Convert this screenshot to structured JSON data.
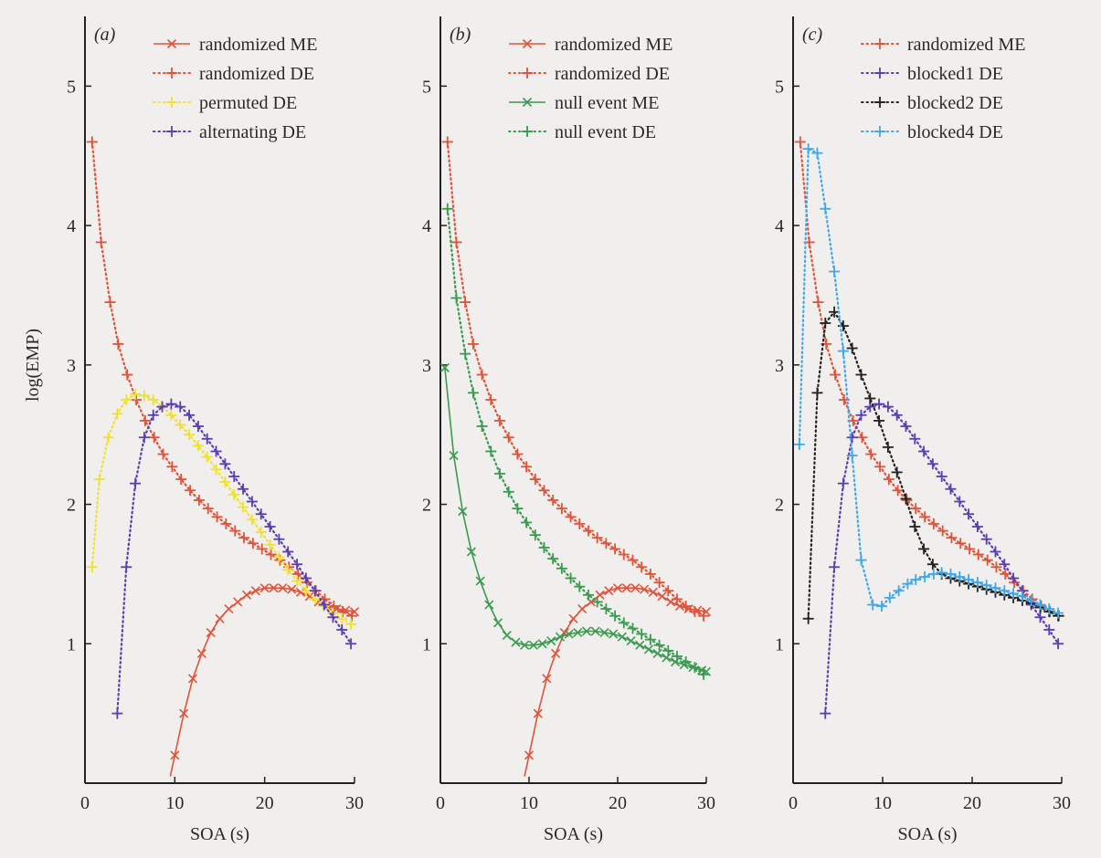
{
  "figure": {
    "ylabel": "log(EMP)"
  },
  "colors": {
    "red": "#e0533a",
    "yellow": "#f0e030",
    "purple": "#5a3fb0",
    "green": "#3a9a50",
    "black": "#222222",
    "lightblue": "#40a8e8",
    "axis": "#222222"
  },
  "chart_data": [
    {
      "type": "line",
      "panel_label": "(a)",
      "xlabel": "SOA (s)",
      "ylabel": "log(EMP)",
      "xlim": [
        0,
        30
      ],
      "ylim": [
        0,
        5.5
      ],
      "xticks": [
        0,
        10,
        20,
        30
      ],
      "yticks": [
        1,
        2,
        3,
        4,
        5
      ],
      "legend_position": "top-right",
      "series": [
        {
          "name": "randomized ME",
          "color_key": "red",
          "marker": "x",
          "line": "solid",
          "x": [
            9.5,
            10,
            11,
            12,
            13,
            14,
            15,
            16,
            17,
            18,
            19,
            20,
            21,
            22,
            23,
            24,
            25,
            26,
            27,
            28,
            29,
            30
          ],
          "y": [
            0.05,
            0.2,
            0.5,
            0.75,
            0.93,
            1.08,
            1.18,
            1.25,
            1.3,
            1.35,
            1.38,
            1.4,
            1.4,
            1.4,
            1.39,
            1.37,
            1.34,
            1.3,
            1.27,
            1.25,
            1.24,
            1.23
          ]
        },
        {
          "name": "randomized DE",
          "color_key": "red",
          "marker": "+",
          "line": "dotted",
          "x": [
            0.8,
            1.8,
            2.8,
            3.7,
            4.7,
            5.7,
            6.7,
            7.7,
            8.7,
            9.7,
            10.7,
            11.7,
            12.7,
            13.7,
            14.7,
            15.7,
            16.7,
            17.7,
            18.7,
            19.7,
            20.7,
            21.7,
            22.7,
            23.7,
            24.7,
            25.7,
            26.7,
            27.7,
            28.7,
            29.7
          ],
          "y": [
            4.6,
            3.88,
            3.45,
            3.15,
            2.93,
            2.75,
            2.6,
            2.48,
            2.36,
            2.27,
            2.18,
            2.1,
            2.03,
            1.97,
            1.91,
            1.86,
            1.81,
            1.76,
            1.72,
            1.68,
            1.64,
            1.6,
            1.55,
            1.5,
            1.44,
            1.38,
            1.32,
            1.27,
            1.23,
            1.2
          ]
        },
        {
          "name": "permuted DE",
          "color_key": "yellow",
          "marker": "+",
          "line": "dotted",
          "x": [
            0.8,
            1.6,
            2.6,
            3.6,
            4.6,
            5.6,
            6.6,
            7.6,
            8.6,
            9.6,
            10.6,
            11.6,
            12.6,
            13.6,
            14.6,
            15.6,
            16.6,
            17.6,
            18.6,
            19.6,
            20.6,
            21.6,
            22.6,
            23.6,
            24.6,
            25.6,
            26.6,
            27.6,
            28.6,
            29.6
          ],
          "y": [
            1.55,
            2.18,
            2.48,
            2.65,
            2.75,
            2.79,
            2.78,
            2.75,
            2.7,
            2.64,
            2.57,
            2.5,
            2.42,
            2.34,
            2.25,
            2.16,
            2.07,
            1.98,
            1.89,
            1.8,
            1.71,
            1.62,
            1.53,
            1.45,
            1.38,
            1.32,
            1.27,
            1.22,
            1.18,
            1.14
          ]
        },
        {
          "name": "alternating DE",
          "color_key": "purple",
          "marker": "+",
          "line": "dotted",
          "x": [
            3.6,
            4.6,
            5.6,
            6.6,
            7.6,
            8.6,
            9.6,
            10.6,
            11.6,
            12.6,
            13.6,
            14.6,
            15.6,
            16.6,
            17.6,
            18.6,
            19.6,
            20.6,
            21.6,
            22.6,
            23.6,
            24.6,
            25.6,
            26.6,
            27.6,
            28.6,
            29.6
          ],
          "y": [
            0.5,
            1.55,
            2.15,
            2.48,
            2.64,
            2.7,
            2.72,
            2.7,
            2.64,
            2.56,
            2.47,
            2.38,
            2.29,
            2.2,
            2.11,
            2.02,
            1.93,
            1.84,
            1.75,
            1.66,
            1.57,
            1.47,
            1.38,
            1.28,
            1.19,
            1.1,
            1.0
          ]
        }
      ]
    },
    {
      "type": "line",
      "panel_label": "(b)",
      "xlabel": "SOA (s)",
      "ylabel": "",
      "xlim": [
        0,
        30
      ],
      "ylim": [
        0,
        5.5
      ],
      "xticks": [
        0,
        10,
        20,
        30
      ],
      "yticks": [
        1,
        2,
        3,
        4,
        5
      ],
      "legend_position": "top-right",
      "series": [
        {
          "name": "randomized ME",
          "color_key": "red",
          "marker": "x",
          "line": "solid",
          "x": [
            9.5,
            10,
            11,
            12,
            13,
            14,
            15,
            16,
            17,
            18,
            19,
            20,
            21,
            22,
            23,
            24,
            25,
            26,
            27,
            28,
            29,
            30
          ],
          "y": [
            0.05,
            0.2,
            0.5,
            0.75,
            0.93,
            1.08,
            1.18,
            1.25,
            1.3,
            1.35,
            1.38,
            1.4,
            1.4,
            1.4,
            1.39,
            1.37,
            1.34,
            1.3,
            1.27,
            1.25,
            1.24,
            1.23
          ]
        },
        {
          "name": "randomized DE",
          "color_key": "red",
          "marker": "+",
          "line": "dotted",
          "x": [
            0.8,
            1.8,
            2.8,
            3.7,
            4.7,
            5.7,
            6.7,
            7.7,
            8.7,
            9.7,
            10.7,
            11.7,
            12.7,
            13.7,
            14.7,
            15.7,
            16.7,
            17.7,
            18.7,
            19.7,
            20.7,
            21.7,
            22.7,
            23.7,
            24.7,
            25.7,
            26.7,
            27.7,
            28.7,
            29.7
          ],
          "y": [
            4.6,
            3.88,
            3.45,
            3.15,
            2.93,
            2.75,
            2.6,
            2.48,
            2.36,
            2.27,
            2.18,
            2.1,
            2.03,
            1.97,
            1.91,
            1.86,
            1.81,
            1.76,
            1.72,
            1.68,
            1.64,
            1.6,
            1.55,
            1.5,
            1.44,
            1.38,
            1.32,
            1.27,
            1.23,
            1.2
          ]
        },
        {
          "name": "null event ME",
          "color_key": "green",
          "marker": "x",
          "line": "solid",
          "x": [
            0.5,
            1.5,
            2.5,
            3.5,
            4.5,
            5.5,
            6.5,
            7.5,
            8.5,
            9.5,
            10.5,
            11.5,
            12.5,
            13.5,
            14.5,
            15.5,
            16.5,
            17.5,
            18.5,
            19.5,
            20.5,
            21.5,
            22.5,
            23.5,
            24.5,
            25.5,
            26.5,
            27.5,
            28.5,
            29.5,
            30
          ],
          "y": [
            2.98,
            2.35,
            1.95,
            1.66,
            1.45,
            1.28,
            1.15,
            1.06,
            1.01,
            0.99,
            0.99,
            1.0,
            1.02,
            1.05,
            1.07,
            1.08,
            1.09,
            1.09,
            1.08,
            1.07,
            1.05,
            1.02,
            0.99,
            0.96,
            0.93,
            0.9,
            0.87,
            0.85,
            0.83,
            0.81,
            0.8
          ]
        },
        {
          "name": "null event DE",
          "color_key": "green",
          "marker": "+",
          "line": "dotted",
          "x": [
            0.8,
            1.8,
            2.8,
            3.7,
            4.7,
            5.7,
            6.7,
            7.7,
            8.7,
            9.7,
            10.7,
            11.7,
            12.7,
            13.7,
            14.7,
            15.7,
            16.7,
            17.7,
            18.7,
            19.7,
            20.7,
            21.7,
            22.7,
            23.7,
            24.7,
            25.7,
            26.7,
            27.7,
            28.7,
            29.7
          ],
          "y": [
            4.12,
            3.48,
            3.08,
            2.8,
            2.56,
            2.38,
            2.22,
            2.09,
            1.97,
            1.87,
            1.78,
            1.69,
            1.61,
            1.54,
            1.47,
            1.41,
            1.35,
            1.3,
            1.25,
            1.2,
            1.15,
            1.11,
            1.07,
            1.03,
            0.99,
            0.95,
            0.91,
            0.87,
            0.83,
            0.78
          ]
        }
      ]
    },
    {
      "type": "line",
      "panel_label": "(c)",
      "xlabel": "SOA (s)",
      "ylabel": "",
      "xlim": [
        0,
        30
      ],
      "ylim": [
        0,
        5.5
      ],
      "xticks": [
        0,
        10,
        20,
        30
      ],
      "yticks": [
        1,
        2,
        3,
        4,
        5
      ],
      "legend_position": "top-right",
      "series": [
        {
          "name": "randomized ME",
          "color_key": "red",
          "marker": "+",
          "line": "dotted",
          "x": [
            0.8,
            1.8,
            2.8,
            3.7,
            4.7,
            5.7,
            6.7,
            7.7,
            8.7,
            9.7,
            10.7,
            11.7,
            12.7,
            13.7,
            14.7,
            15.7,
            16.7,
            17.7,
            18.7,
            19.7,
            20.7,
            21.7,
            22.7,
            23.7,
            24.7,
            25.7,
            26.7,
            27.7,
            28.7,
            29.7
          ],
          "y": [
            4.6,
            3.88,
            3.45,
            3.15,
            2.93,
            2.75,
            2.6,
            2.48,
            2.36,
            2.27,
            2.18,
            2.1,
            2.03,
            1.97,
            1.91,
            1.86,
            1.81,
            1.76,
            1.72,
            1.68,
            1.64,
            1.6,
            1.55,
            1.5,
            1.44,
            1.38,
            1.32,
            1.27,
            1.23,
            1.2
          ]
        },
        {
          "name": "blocked1 DE",
          "color_key": "purple",
          "marker": "+",
          "line": "dotted",
          "x": [
            3.6,
            4.6,
            5.6,
            6.6,
            7.6,
            8.6,
            9.6,
            10.6,
            11.6,
            12.6,
            13.6,
            14.6,
            15.6,
            16.6,
            17.6,
            18.6,
            19.6,
            20.6,
            21.6,
            22.6,
            23.6,
            24.6,
            25.6,
            26.6,
            27.6,
            28.6,
            29.6
          ],
          "y": [
            0.5,
            1.55,
            2.15,
            2.48,
            2.64,
            2.7,
            2.72,
            2.7,
            2.64,
            2.56,
            2.47,
            2.38,
            2.29,
            2.2,
            2.11,
            2.02,
            1.93,
            1.84,
            1.75,
            1.66,
            1.57,
            1.47,
            1.38,
            1.28,
            1.19,
            1.1,
            1.0
          ]
        },
        {
          "name": "blocked2 DE",
          "color_key": "black",
          "marker": "+",
          "line": "dotted",
          "x": [
            1.7,
            2.7,
            3.6,
            4.6,
            5.6,
            6.6,
            7.6,
            8.6,
            9.6,
            10.6,
            11.6,
            12.6,
            13.6,
            14.6,
            15.6,
            16.6,
            17.6,
            18.6,
            19.6,
            20.6,
            21.6,
            22.6,
            23.6,
            24.6,
            25.6,
            26.6,
            27.6,
            28.6,
            29.6
          ],
          "y": [
            1.18,
            2.8,
            3.3,
            3.38,
            3.28,
            3.12,
            2.93,
            2.76,
            2.6,
            2.41,
            2.23,
            2.04,
            1.84,
            1.68,
            1.57,
            1.5,
            1.47,
            1.45,
            1.43,
            1.41,
            1.39,
            1.37,
            1.35,
            1.33,
            1.31,
            1.29,
            1.26,
            1.23,
            1.2
          ]
        },
        {
          "name": "blocked4 DE",
          "color_key": "lightblue",
          "marker": "+",
          "line": "dotted",
          "x": [
            0.7,
            1.7,
            2.7,
            3.6,
            4.6,
            5.6,
            6.6,
            7.6,
            8.9,
            9.9,
            10.8,
            11.8,
            12.8,
            13.7,
            14.7,
            15.7,
            16.6,
            17.6,
            18.6,
            19.6,
            20.6,
            21.6,
            22.6,
            23.6,
            24.6,
            25.6,
            26.6,
            27.6,
            28.6,
            29.6
          ],
          "y": [
            2.43,
            4.55,
            4.52,
            4.12,
            3.67,
            3.1,
            2.35,
            1.6,
            1.28,
            1.27,
            1.33,
            1.38,
            1.43,
            1.46,
            1.48,
            1.5,
            1.51,
            1.5,
            1.48,
            1.46,
            1.44,
            1.42,
            1.4,
            1.38,
            1.36,
            1.34,
            1.31,
            1.28,
            1.25,
            1.22
          ]
        }
      ]
    }
  ]
}
